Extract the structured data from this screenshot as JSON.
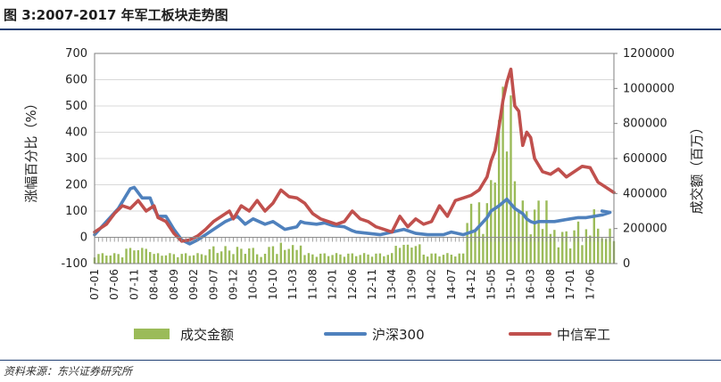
{
  "header": {
    "title": "图 3:2007-2017 年军工板块走势图"
  },
  "footer": {
    "source": "资料来源：东兴证券研究所"
  },
  "chart_data": {
    "type": "line",
    "title": "图 3:2007-2017 年军工板块走势图",
    "ylabel_left": "涨幅百分比（%）",
    "ylabel_right": "成交额（百万）",
    "ylim_left": [
      -100,
      700
    ],
    "yticks_left": [
      "-100",
      "0",
      "100",
      "200",
      "300",
      "400",
      "500",
      "600",
      "700"
    ],
    "ylim_right": [
      0,
      1200000
    ],
    "yticks_right": [
      "0",
      "200000",
      "400000",
      "600000",
      "800000",
      "1000000",
      "1200000"
    ],
    "x_tick_labels": [
      "07-01",
      "07-06",
      "07-11",
      "08-04",
      "08-09",
      "09-02",
      "09-07",
      "09-12",
      "10-05",
      "10-10",
      "11-03",
      "11-08",
      "12-01",
      "12-06",
      "12-11",
      "13-04",
      "13-09",
      "14-02",
      "14-07",
      "14-12",
      "15-05",
      "15-10",
      "16-03",
      "16-08",
      "17-01",
      "17-06"
    ],
    "legend": [
      "成交金额",
      "沪深300",
      "中信军工"
    ],
    "legend_position": "bottom",
    "grid": "horizontal",
    "colors": {
      "volume": "#9bbb59",
      "csi300": "#4f81bd",
      "military": "#c0504d",
      "axis": "#7f7f7f",
      "grid": "#d9d9d9",
      "text": "#222222"
    },
    "series": [
      {
        "name": "沪深300",
        "axis": "left",
        "months": [
          0,
          3,
          6,
          8,
          9,
          10,
          12,
          14,
          15,
          16,
          18,
          20,
          22,
          24,
          26,
          28,
          30,
          33,
          36,
          38,
          40,
          43,
          45,
          48,
          51,
          52,
          53,
          56,
          58,
          60,
          63,
          65,
          66,
          69,
          72,
          75,
          78,
          81,
          84,
          88,
          90,
          93,
          96,
          99,
          100,
          102,
          104,
          106,
          108,
          109,
          110,
          111,
          112,
          114,
          116,
          118,
          120,
          122,
          124,
          126,
          128,
          130,
          128
        ],
        "values": [
          10,
          60,
          110,
          160,
          185,
          190,
          150,
          150,
          110,
          80,
          80,
          30,
          -10,
          -25,
          -10,
          10,
          30,
          60,
          80,
          50,
          70,
          50,
          60,
          30,
          40,
          60,
          55,
          50,
          55,
          45,
          40,
          25,
          20,
          15,
          10,
          20,
          30,
          15,
          10,
          10,
          20,
          10,
          25,
          75,
          100,
          120,
          145,
          110,
          90,
          70,
          60,
          55,
          60,
          60,
          60,
          65,
          70,
          75,
          75,
          80,
          85,
          95,
          100
        ]
      },
      {
        "name": "中信军工",
        "axis": "left",
        "months": [
          0,
          3,
          5,
          7,
          9,
          11,
          13,
          15,
          16,
          18,
          20,
          22,
          24,
          26,
          28,
          30,
          32,
          34,
          35,
          37,
          39,
          41,
          43,
          45,
          47,
          49,
          51,
          53,
          55,
          57,
          59,
          61,
          63,
          65,
          67,
          69,
          71,
          73,
          75,
          77,
          79,
          81,
          83,
          85,
          87,
          89,
          91,
          93,
          95,
          97,
          99,
          100,
          101,
          102,
          103,
          104,
          105,
          106,
          107,
          108,
          109,
          110,
          111,
          113,
          115,
          117,
          119,
          121,
          123,
          125,
          127,
          128,
          129,
          130,
          131
        ],
        "values": [
          20,
          50,
          90,
          120,
          110,
          140,
          100,
          120,
          75,
          60,
          15,
          -15,
          -10,
          5,
          30,
          60,
          80,
          100,
          70,
          120,
          100,
          140,
          100,
          130,
          180,
          155,
          150,
          130,
          90,
          70,
          60,
          50,
          60,
          100,
          70,
          60,
          40,
          30,
          20,
          80,
          40,
          70,
          50,
          60,
          120,
          80,
          140,
          150,
          160,
          180,
          230,
          290,
          330,
          420,
          520,
          590,
          640,
          500,
          480,
          350,
          400,
          380,
          300,
          250,
          240,
          260,
          230,
          250,
          270,
          265,
          210,
          200,
          190,
          180,
          170
        ]
      }
    ],
    "volume_note": "green bars on right axis, peak ≈ 1,010,000 near 15-05"
  }
}
